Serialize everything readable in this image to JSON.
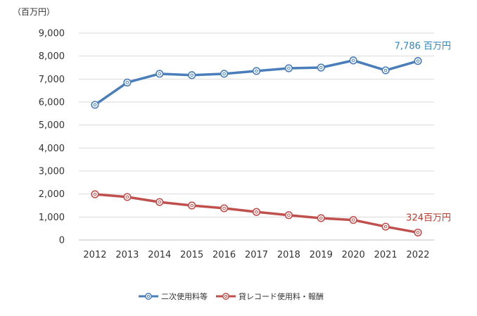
{
  "chart_data": {
    "type": "line",
    "unit_label": "（百万円）",
    "x": [
      "2012",
      "2013",
      "2014",
      "2015",
      "2016",
      "2017",
      "2018",
      "2019",
      "2020",
      "2021",
      "2022"
    ],
    "ylim": [
      0,
      9000
    ],
    "yticks": [
      0,
      1000,
      2000,
      3000,
      4000,
      5000,
      6000,
      7000,
      8000,
      9000
    ],
    "ytick_labels": [
      "0",
      "1,000",
      "2,000",
      "3,000",
      "4,000",
      "5,000",
      "6,000",
      "7,000",
      "8,000",
      "9,000"
    ],
    "grid": true,
    "legend_position": "bottom",
    "series": [
      {
        "name": "二次使用料等",
        "color": "#4a7ebb",
        "values": [
          5880,
          6850,
          7230,
          7170,
          7230,
          7350,
          7470,
          7500,
          7810,
          7380,
          7786
        ],
        "end_annotation": "7,786 百万円",
        "annotation_color": "#2e86c1"
      },
      {
        "name": "貸レコード使用料・報酬",
        "color": "#c0504d",
        "values": [
          1990,
          1870,
          1650,
          1500,
          1380,
          1220,
          1080,
          950,
          870,
          580,
          324
        ],
        "end_annotation": "324百万円",
        "annotation_color": "#c0392b"
      }
    ]
  }
}
